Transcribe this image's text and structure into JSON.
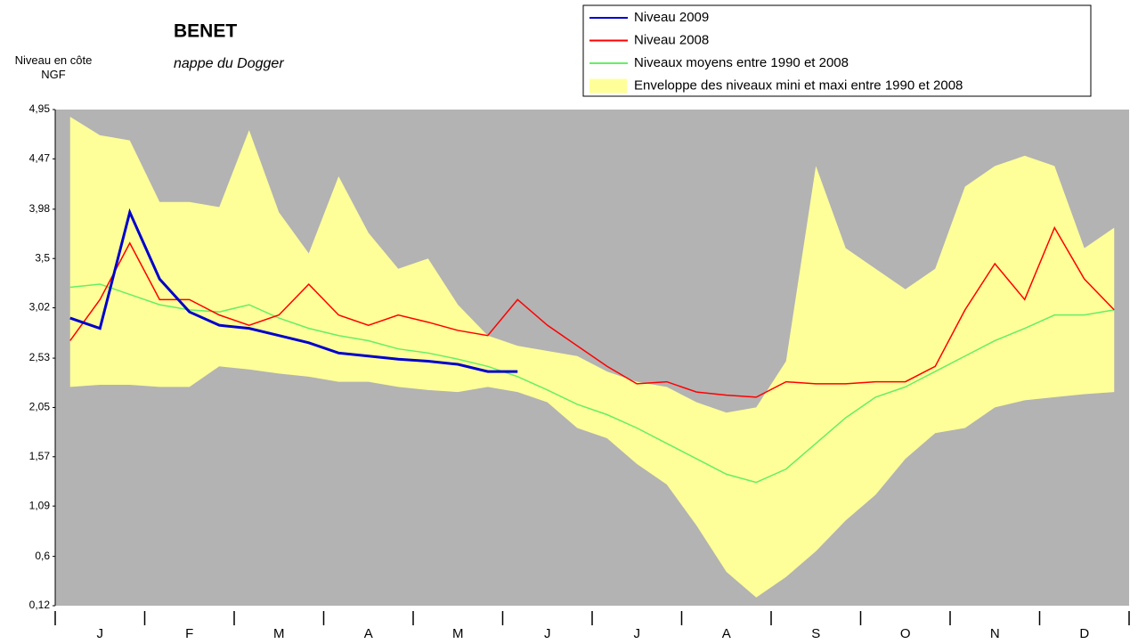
{
  "chart_data": {
    "type": "line",
    "title": "BENET",
    "subtitle": "nappe du Dogger",
    "ylabel": "Niveau en côte NGF",
    "categories": [
      null,
      "J",
      null,
      null,
      "F",
      null,
      null,
      "M",
      null,
      null,
      "A",
      null,
      null,
      "M",
      null,
      null,
      "J",
      null,
      null,
      "J",
      null,
      null,
      "A",
      null,
      null,
      "S",
      null,
      null,
      "O",
      null,
      null,
      "N",
      null,
      null,
      "D",
      null
    ],
    "ylim": [
      0.12,
      4.95
    ],
    "yticks": [
      {
        "value": 0.12,
        "label": "0,12"
      },
      {
        "value": 0.6,
        "label": "0,6"
      },
      {
        "value": 1.09,
        "label": "1,09"
      },
      {
        "value": 1.57,
        "label": "1,57"
      },
      {
        "value": 2.05,
        "label": "2,05"
      },
      {
        "value": 2.53,
        "label": "2,53"
      },
      {
        "value": 3.02,
        "label": "3,02"
      },
      {
        "value": 3.5,
        "label": "3,5"
      },
      {
        "value": 3.98,
        "label": "3,98"
      },
      {
        "value": 4.47,
        "label": "4,47"
      },
      {
        "value": 4.95,
        "label": "4,95"
      }
    ],
    "grid": false,
    "series": [
      {
        "name": "Niveau 2009",
        "color": "#0000cc",
        "values": [
          2.92,
          2.82,
          3.95,
          3.3,
          2.98,
          2.85,
          2.82,
          2.75,
          2.68,
          2.58,
          2.55,
          2.52,
          2.5,
          2.47,
          2.4,
          2.4,
          null,
          null,
          null,
          null,
          null,
          null,
          null,
          null,
          null,
          null,
          null,
          null,
          null,
          null,
          null,
          null,
          null,
          null,
          null,
          null
        ]
      },
      {
        "name": "Niveau 2008",
        "color": "#ff0000",
        "values": [
          2.7,
          3.1,
          3.65,
          3.1,
          3.1,
          2.95,
          2.85,
          2.95,
          3.25,
          2.95,
          2.85,
          2.95,
          2.88,
          2.8,
          2.75,
          3.1,
          2.85,
          2.65,
          2.45,
          2.28,
          2.3,
          2.2,
          2.17,
          2.15,
          2.3,
          2.28,
          2.28,
          2.3,
          2.3,
          2.45,
          3.0,
          3.45,
          3.1,
          3.8,
          3.3,
          3.0
        ]
      },
      {
        "name": "Niveaux moyens entre 1990 et 2008",
        "color": "#66ee66",
        "values": [
          3.22,
          3.25,
          3.15,
          3.05,
          3.0,
          2.98,
          3.05,
          2.92,
          2.82,
          2.75,
          2.7,
          2.62,
          2.58,
          2.52,
          2.45,
          2.35,
          2.22,
          2.08,
          1.98,
          1.85,
          1.7,
          1.55,
          1.4,
          1.32,
          1.45,
          1.7,
          1.95,
          2.15,
          2.25,
          2.4,
          2.55,
          2.7,
          2.82,
          2.95,
          2.95,
          3.0
        ]
      },
      {
        "name": "Enveloppe des niveaux mini et maxi entre 1990 et 2008",
        "color": "#ffff99",
        "kind": "band",
        "values": [
          4.88,
          4.7,
          4.65,
          4.05,
          4.05,
          4.0,
          4.75,
          3.95,
          3.55,
          4.3,
          3.75,
          3.4,
          3.5,
          3.05,
          2.75,
          2.65,
          2.6,
          2.55,
          2.4,
          2.3,
          2.25,
          2.1,
          2.0,
          2.05,
          2.5,
          4.4,
          3.6,
          3.4,
          3.2,
          3.4,
          4.2,
          4.4,
          4.5,
          4.4,
          3.6,
          3.8
        ],
        "low": [
          2.25,
          2.27,
          2.27,
          2.25,
          2.25,
          2.45,
          2.42,
          2.38,
          2.35,
          2.3,
          2.3,
          2.25,
          2.22,
          2.2,
          2.25,
          2.2,
          2.1,
          1.85,
          1.75,
          1.5,
          1.3,
          0.9,
          0.45,
          0.2,
          0.4,
          0.65,
          0.95,
          1.2,
          1.55,
          1.8,
          1.85,
          2.05,
          2.12,
          2.15,
          2.18,
          2.2
        ]
      }
    ]
  }
}
